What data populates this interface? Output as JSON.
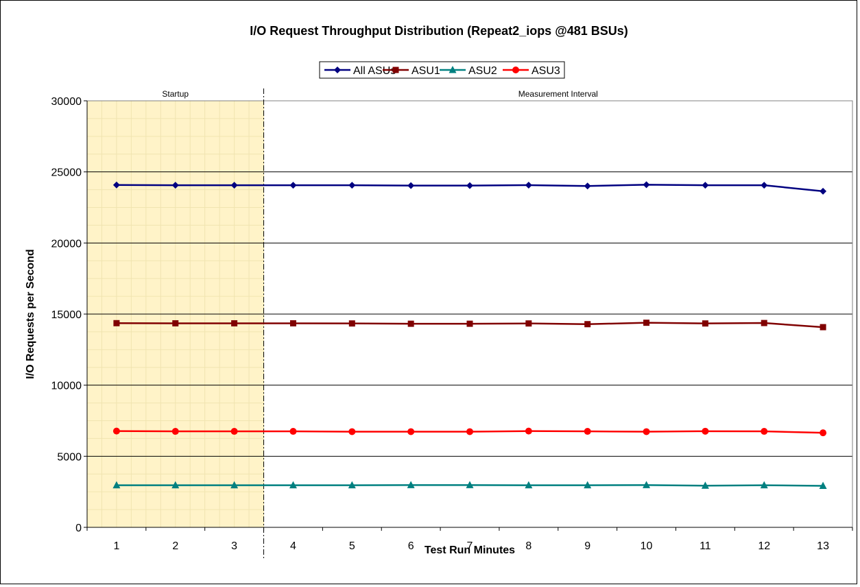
{
  "chart_data": {
    "type": "line",
    "title": "I/O Request Throughput Distribution (Repeat2_iops @481 BSUs)",
    "xlabel": "Test Run Minutes",
    "ylabel": "I/O Requests per Second",
    "x": [
      1,
      2,
      3,
      4,
      5,
      6,
      7,
      8,
      9,
      10,
      11,
      12,
      13
    ],
    "ylim": [
      0,
      30000
    ],
    "yticks": [
      0,
      5000,
      10000,
      15000,
      20000,
      25000,
      30000
    ],
    "grid": "horizontal",
    "legend_position": "top",
    "regions": [
      {
        "label": "Startup",
        "x_start": 0.5,
        "x_end": 3.5,
        "fill": "#fff2c2"
      },
      {
        "label": "Measurement Interval",
        "x_start": 3.5,
        "x_end": 13.5
      }
    ],
    "series": [
      {
        "name": "All ASUs",
        "color": "#000080",
        "marker": "diamond",
        "values": [
          24080,
          24060,
          24060,
          24060,
          24060,
          24040,
          24040,
          24070,
          24010,
          24100,
          24060,
          24060,
          23640
        ]
      },
      {
        "name": "ASU1",
        "color": "#800000",
        "marker": "square",
        "values": [
          14360,
          14350,
          14350,
          14350,
          14340,
          14320,
          14320,
          14340,
          14290,
          14390,
          14340,
          14370,
          14080
        ]
      },
      {
        "name": "ASU2",
        "color": "#008080",
        "marker": "triangle",
        "values": [
          2960,
          2960,
          2960,
          2960,
          2960,
          2970,
          2970,
          2960,
          2960,
          2970,
          2930,
          2960,
          2920
        ]
      },
      {
        "name": "ASU3",
        "color": "#ff0000",
        "marker": "circle",
        "values": [
          6770,
          6750,
          6750,
          6750,
          6730,
          6730,
          6730,
          6770,
          6750,
          6730,
          6760,
          6750,
          6650
        ]
      }
    ]
  }
}
